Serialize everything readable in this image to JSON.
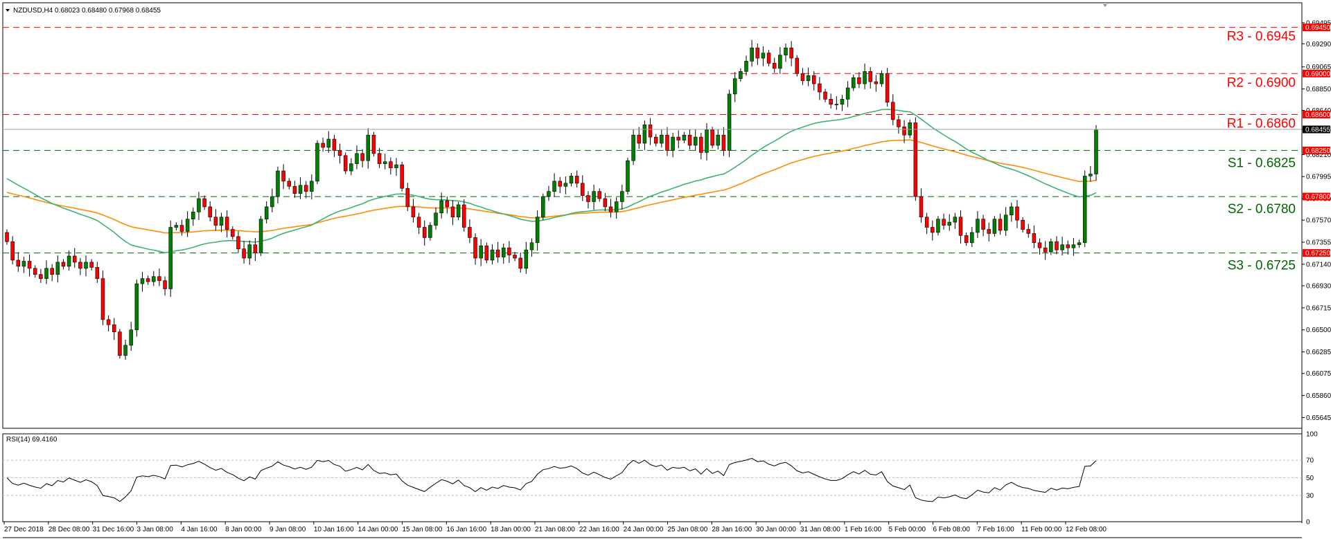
{
  "window": {
    "title": "NZDUSD,H4",
    "ohlc": "0.68023 0.68480 0.67968 0.68455",
    "rsi_label": "RSI(14) 69.4160"
  },
  "chart_data": {
    "type": "candlestick",
    "symbol": "NZDUSD",
    "timeframe": "H4",
    "last_price": "0.68455",
    "ylim": [
      0.6554,
      0.6969
    ],
    "price_ticks": [
      "0.69495",
      "0.69290",
      "0.69065",
      "0.68850",
      "0.68640",
      "0.68455",
      "0.68210",
      "0.67995",
      "0.67780",
      "0.67570",
      "0.67355",
      "0.67140",
      "0.66930",
      "0.66715",
      "0.66500",
      "0.66285",
      "0.66075",
      "0.65860",
      "0.65645"
    ],
    "time_labels": [
      "27 Dec 2018",
      "28 Dec 08:00",
      "31 Dec 16:00",
      "3 Jan 08:00",
      "4 Jan 16:00",
      "8 Jan 00:00",
      "9 Jan 08:00",
      "10 Jan 16:00",
      "14 Jan 00:00",
      "15 Jan 08:00",
      "16 Jan 16:00",
      "18 Jan 00:00",
      "21 Jan 08:00",
      "22 Jan 16:00",
      "24 Jan 00:00",
      "25 Jan 08:00",
      "28 Jan 16:00",
      "30 Jan 00:00",
      "31 Jan 08:00",
      "1 Feb 16:00",
      "5 Feb 00:00",
      "6 Feb 08:00",
      "7 Feb 16:00",
      "11 Feb 00:00",
      "12 Feb 08:00"
    ],
    "levels": [
      {
        "name": "R3",
        "price": 0.6945,
        "label": "R3 - 0.6945",
        "tag": "0.69450",
        "color": "#ff0000"
      },
      {
        "name": "R2",
        "price": 0.69,
        "label": "R2 - 0.6900",
        "tag": "0.69000",
        "color": "#ff0000"
      },
      {
        "name": "R1",
        "price": 0.686,
        "label": "R1 - 0.6860",
        "tag": "0.68600",
        "color": "#ff0000"
      },
      {
        "name": "S1",
        "price": 0.6825,
        "label": "S1 - 0.6825",
        "tag": "0.68250",
        "color": "#006400"
      },
      {
        "name": "S2",
        "price": 0.678,
        "label": "S2 - 0.6780",
        "tag": "0.67800",
        "color": "#006400"
      },
      {
        "name": "S3",
        "price": 0.6725,
        "label": "S3 - 0.6725",
        "tag": "0.67250",
        "color": "#006400"
      }
    ],
    "candle_colors": {
      "up": "#008000",
      "down": "#ff0000",
      "outline": "#000000"
    },
    "ma_colors": {
      "fast": "#3cb371",
      "slow": "#ff8c00"
    },
    "closes": [
      0.6736,
      0.6718,
      0.6712,
      0.6717,
      0.671,
      0.6704,
      0.67,
      0.671,
      0.6704,
      0.6716,
      0.6712,
      0.6722,
      0.6716,
      0.671,
      0.6716,
      0.6711,
      0.67,
      0.666,
      0.6655,
      0.6648,
      0.6625,
      0.6635,
      0.665,
      0.6695,
      0.67,
      0.6697,
      0.6702,
      0.6698,
      0.669,
      0.675,
      0.6752,
      0.6746,
      0.6758,
      0.6765,
      0.6778,
      0.677,
      0.676,
      0.6752,
      0.676,
      0.6748,
      0.6741,
      0.6729,
      0.672,
      0.6733,
      0.6725,
      0.6758,
      0.677,
      0.678,
      0.6805,
      0.6795,
      0.679,
      0.6783,
      0.6791,
      0.6785,
      0.6795,
      0.6832,
      0.6828,
      0.6836,
      0.6825,
      0.682,
      0.6805,
      0.6812,
      0.6822,
      0.6815,
      0.684,
      0.6822,
      0.6812,
      0.6814,
      0.6808,
      0.6811,
      0.6788,
      0.677,
      0.676,
      0.675,
      0.674,
      0.6752,
      0.6764,
      0.6776,
      0.677,
      0.676,
      0.6772,
      0.675,
      0.674,
      0.672,
      0.6732,
      0.6718,
      0.6728,
      0.6721,
      0.673,
      0.6723,
      0.672,
      0.671,
      0.6728,
      0.6735,
      0.676,
      0.678,
      0.6785,
      0.6795,
      0.679,
      0.6793,
      0.68,
      0.6793,
      0.6781,
      0.6775,
      0.6785,
      0.6778,
      0.677,
      0.6765,
      0.6775,
      0.6785,
      0.6815,
      0.684,
      0.6832,
      0.685,
      0.6838,
      0.6832,
      0.684,
      0.6825,
      0.6838,
      0.6835,
      0.684,
      0.683,
      0.6838,
      0.6823,
      0.6845,
      0.683,
      0.684,
      0.6825,
      0.688,
      0.6895,
      0.6902,
      0.6912,
      0.6925,
      0.6915,
      0.692,
      0.691,
      0.6905,
      0.6918,
      0.6925,
      0.6915,
      0.69,
      0.6893,
      0.6898,
      0.689,
      0.6882,
      0.6875,
      0.687,
      0.687,
      0.6875,
      0.6886,
      0.6896,
      0.689,
      0.6902,
      0.6892,
      0.689,
      0.69,
      0.6872,
      0.6855,
      0.6848,
      0.684,
      0.6852,
      0.678,
      0.676,
      0.675,
      0.6745,
      0.6758,
      0.6752,
      0.6755,
      0.676,
      0.6742,
      0.6735,
      0.6745,
      0.6758,
      0.6748,
      0.6744,
      0.6758,
      0.6747,
      0.6762,
      0.677,
      0.6757,
      0.6748,
      0.6744,
      0.6735,
      0.673,
      0.6726,
      0.6736,
      0.6728,
      0.6733,
      0.673,
      0.6733,
      0.6735,
      0.68,
      0.6802,
      0.68455
    ],
    "rsi": {
      "name": "RSI(14)",
      "value": "69.4160",
      "ylim": [
        0,
        100
      ],
      "ticks": [
        "100",
        "70",
        "50",
        "30",
        "0"
      ],
      "levels": [
        70,
        50,
        30
      ]
    }
  }
}
